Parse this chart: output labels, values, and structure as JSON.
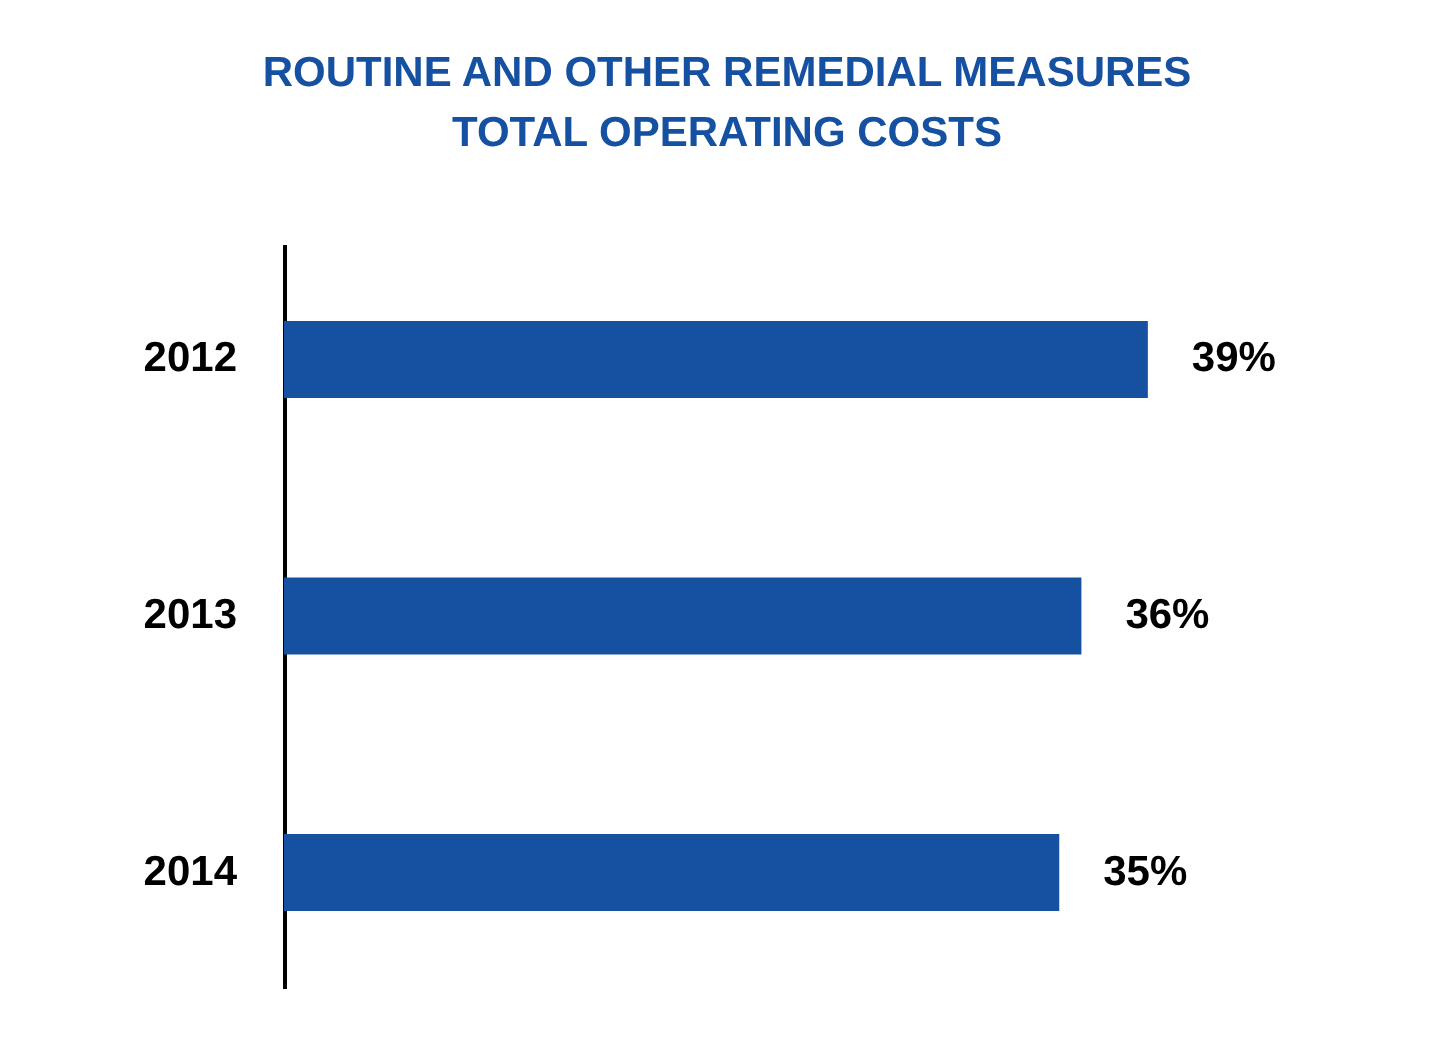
{
  "chart_data": {
    "type": "bar",
    "orientation": "horizontal",
    "title": "ROUTINE AND OTHER REMEDIAL MEASURES\nTOTAL OPERATING COSTS",
    "categories": [
      "2012",
      "2013",
      "2014"
    ],
    "values": [
      39,
      36,
      35
    ],
    "value_labels": [
      "39%",
      "36%",
      "35%"
    ],
    "color": "#1651a1"
  }
}
